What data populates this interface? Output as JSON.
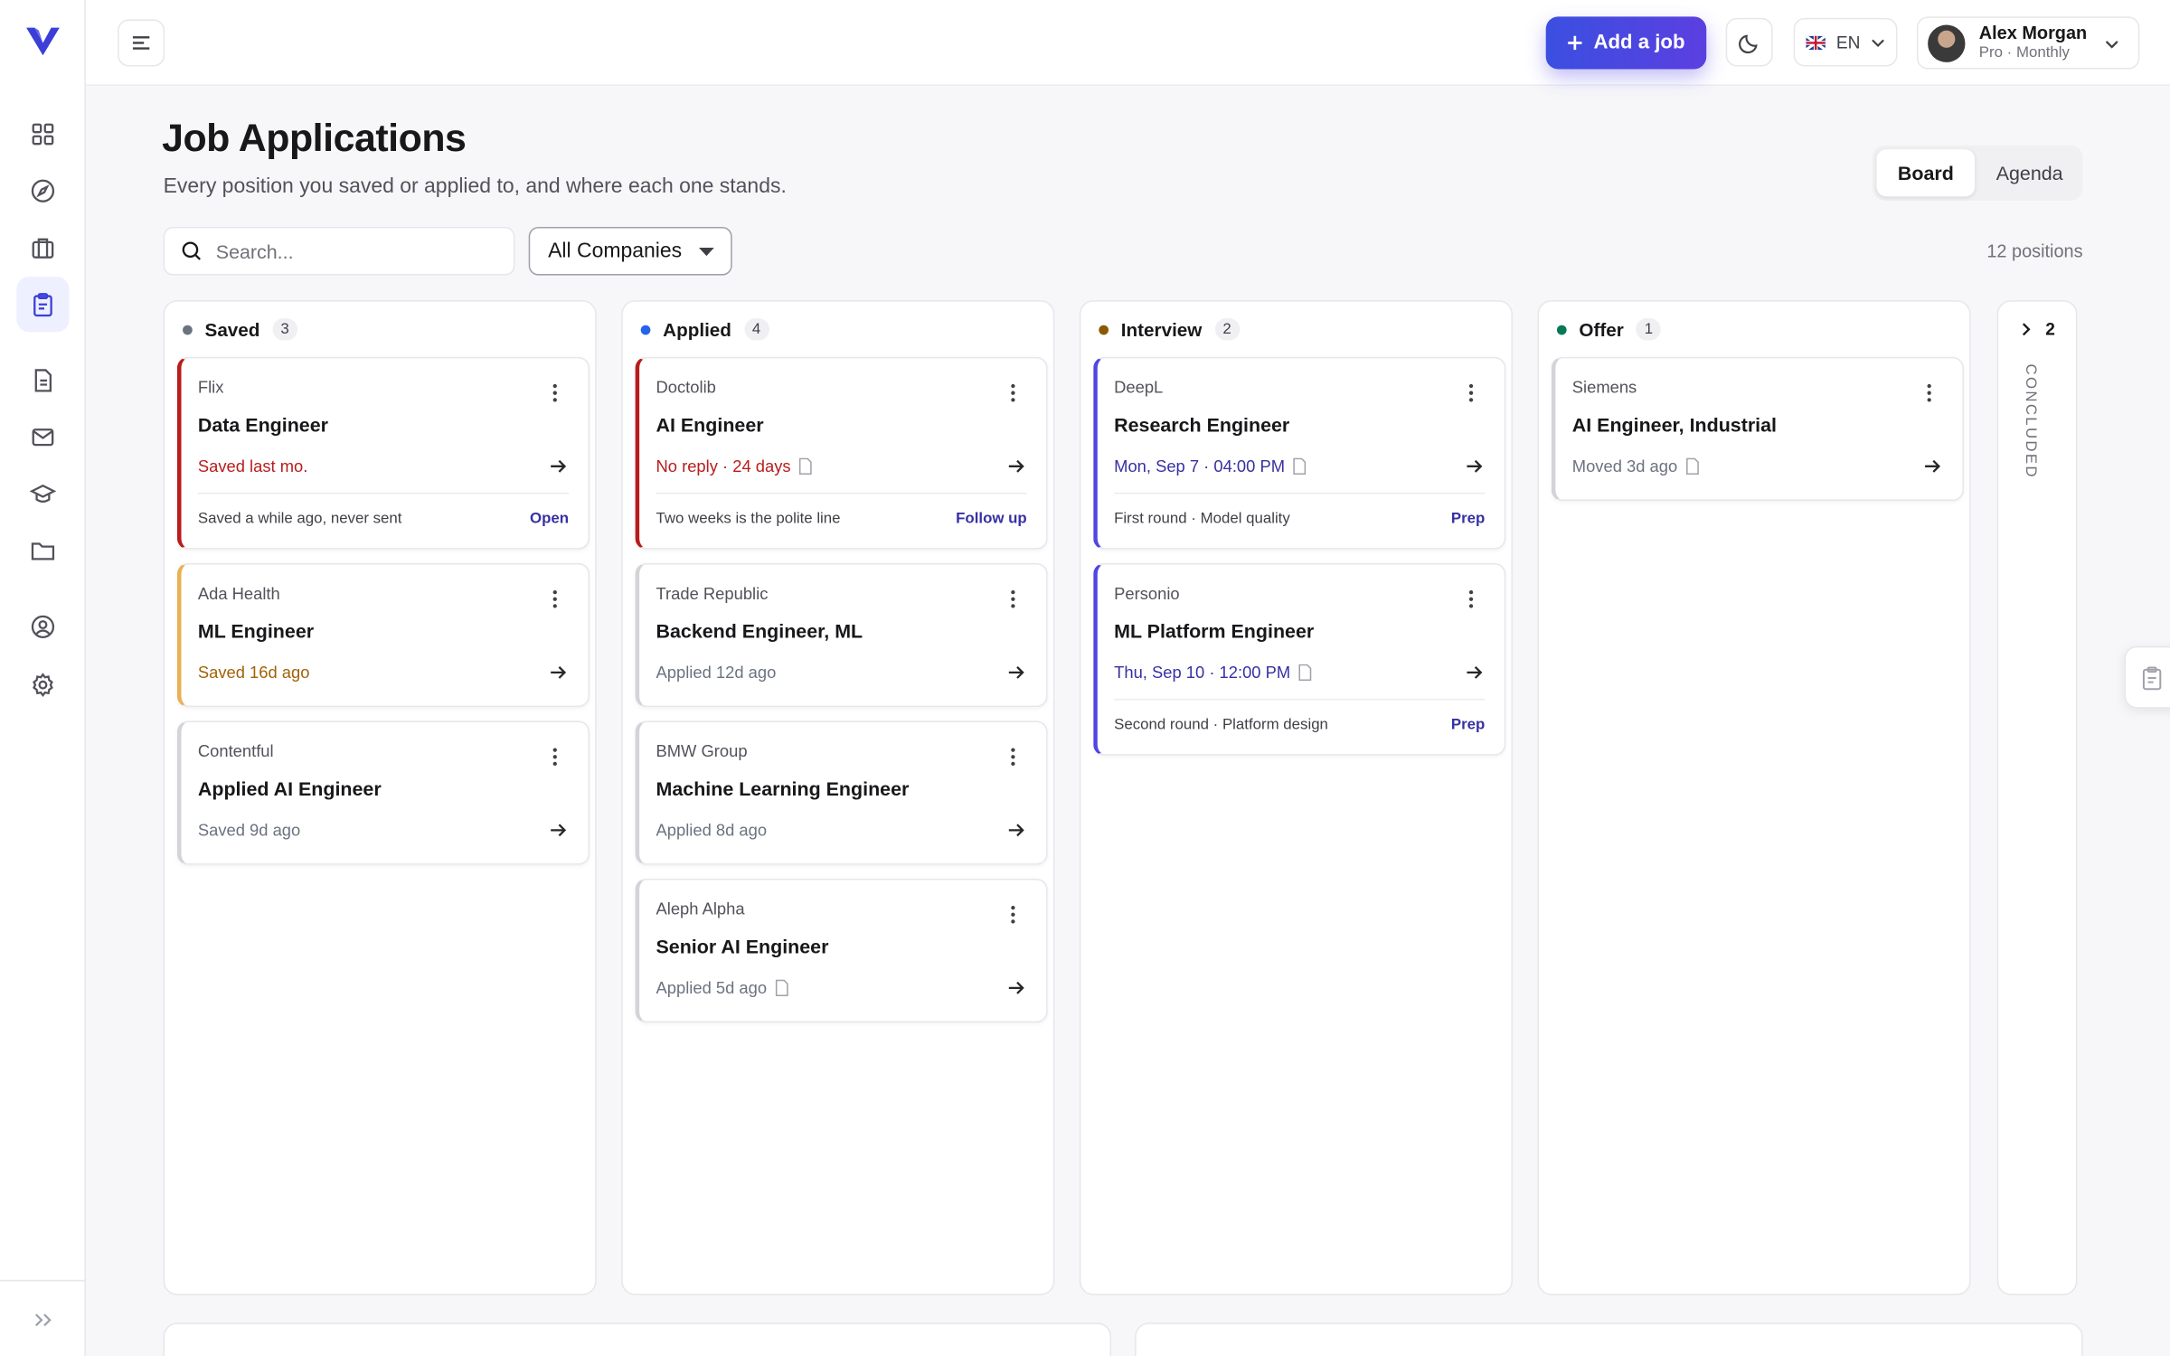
{
  "header": {
    "add_job": "Add a job",
    "language": "EN",
    "user_name": "Alex Morgan",
    "user_plan": "Pro · Monthly"
  },
  "page": {
    "title": "Job Applications",
    "subtitle": "Every position you saved or applied to, and where each one stands.",
    "search_placeholder": "Search...",
    "filter": "All Companies",
    "count_label": "12 positions",
    "views": [
      "Board",
      "Agenda"
    ],
    "active_view": 0
  },
  "columns": [
    {
      "name": "Saved",
      "count": 3,
      "dot": "#6b7280",
      "cards": [
        {
          "company": "Flix",
          "title": "Data Engineer",
          "status": "Saved last mo.",
          "tone": "#b91c1c",
          "accent": "#b91c1c",
          "doc": false,
          "note": "Saved a while ago, never sent",
          "action": "Open"
        },
        {
          "company": "Ada Health",
          "title": "ML Engineer",
          "status": "Saved 16d ago",
          "tone": "#a16207",
          "accent": "#eab054",
          "doc": false
        },
        {
          "company": "Contentful",
          "title": "Applied AI Engineer",
          "status": "Saved 9d ago",
          "tone": "#6b7280",
          "accent": "#d4d4d8",
          "doc": false
        }
      ]
    },
    {
      "name": "Applied",
      "count": 4,
      "dot": "#2563eb",
      "cards": [
        {
          "company": "Doctolib",
          "title": "AI Engineer",
          "status": "No reply · 24 days",
          "tone": "#b91c1c",
          "accent": "#b91c1c",
          "doc": true,
          "note": "Two weeks is the polite line",
          "action": "Follow up"
        },
        {
          "company": "Trade Republic",
          "title": "Backend Engineer, ML",
          "status": "Applied 12d ago",
          "tone": "#6b7280",
          "accent": "#d4d4d8",
          "doc": false
        },
        {
          "company": "BMW Group",
          "title": "Machine Learning Engineer",
          "status": "Applied 8d ago",
          "tone": "#6b7280",
          "accent": "#d4d4d8",
          "doc": false
        },
        {
          "company": "Aleph Alpha",
          "title": "Senior AI Engineer",
          "status": "Applied 5d ago",
          "tone": "#6b7280",
          "accent": "#d4d4d8",
          "doc": true
        }
      ]
    },
    {
      "name": "Interview",
      "count": 2,
      "dot": "#8a5a00",
      "cards": [
        {
          "company": "DeepL",
          "title": "Research Engineer",
          "status": "Mon, Sep 7 · 04:00 PM",
          "tone": "#3730a3",
          "accent": "#4f46e5",
          "doc": true,
          "note": "First round · Model quality",
          "action": "Prep"
        },
        {
          "company": "Personio",
          "title": "ML Platform Engineer",
          "status": "Thu, Sep 10 · 12:00 PM",
          "tone": "#3730a3",
          "accent": "#4f46e5",
          "doc": true,
          "note": "Second round · Platform design",
          "action": "Prep"
        }
      ]
    },
    {
      "name": "Offer",
      "count": 1,
      "dot": "#047857",
      "cards": [
        {
          "company": "Siemens",
          "title": "AI Engineer, Industrial",
          "status": "Moved 3d ago",
          "tone": "#6b7280",
          "accent": "#d4d4d8",
          "doc": true
        }
      ]
    }
  ],
  "concluded": {
    "count": 2,
    "label": "CONCLUDED"
  }
}
